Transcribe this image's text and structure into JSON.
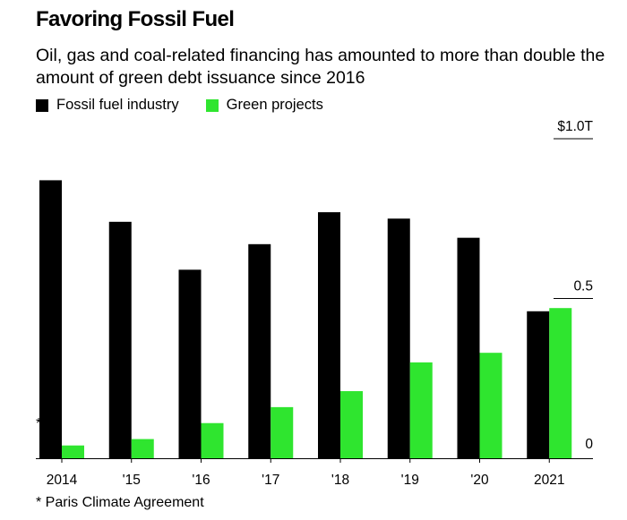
{
  "title": "Favoring Fossil Fuel",
  "subtitle": "Oil, gas and coal-related financing has amounted to more than double the amount of green debt issuance since 2016",
  "legend": [
    {
      "label": "Fossil fuel industry",
      "color": "#000000"
    },
    {
      "label": "Green projects",
      "color": "#2fe52f"
    }
  ],
  "footnote": "* Paris Climate Agreement",
  "marker": "*",
  "chart_data": {
    "type": "bar",
    "categories": [
      "2014",
      "'15",
      "'16",
      "'17",
      "'18",
      "'19",
      "'20",
      "2021"
    ],
    "series": [
      {
        "name": "Fossil fuel industry",
        "color": "#000000",
        "values": [
          0.87,
          0.74,
          0.59,
          0.67,
          0.77,
          0.75,
          0.69,
          0.46
        ]
      },
      {
        "name": "Green projects",
        "color": "#2fe52f",
        "values": [
          0.04,
          0.06,
          0.11,
          0.16,
          0.21,
          0.3,
          0.33,
          0.47
        ]
      }
    ],
    "ylim": [
      0,
      1.0
    ],
    "y_ticks": [
      {
        "value": 1.0,
        "label": "$1.0T"
      },
      {
        "value": 0.5,
        "label": "0.5"
      },
      {
        "value": 0,
        "label": "0"
      }
    ],
    "y_axis_side": "right",
    "legend_position": "top-left",
    "grid": false
  }
}
